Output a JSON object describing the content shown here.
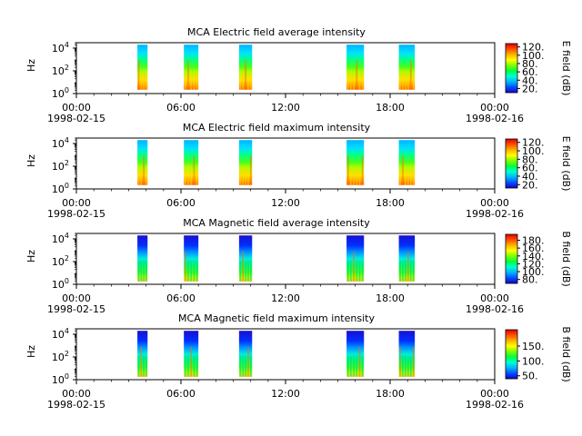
{
  "chart_data": [
    {
      "type": "heatmap",
      "title": "MCA  Electric field average intensity",
      "ylabel": "Hz",
      "y_scale": "log",
      "ylim": [
        1,
        30000
      ],
      "y_ticks": [
        {
          "exp": "0",
          "value": 1
        },
        {
          "exp": "2",
          "value": 100
        },
        {
          "exp": "4",
          "value": 10000
        }
      ],
      "x_ticks": [
        {
          "time": "00:00",
          "date": "1998-02-15"
        },
        {
          "time": "06:00",
          "date": ""
        },
        {
          "time": "12:00",
          "date": ""
        },
        {
          "time": "18:00",
          "date": ""
        },
        {
          "time": "00:00",
          "date": "1998-02-16"
        }
      ],
      "xlim": [
        "1998-02-15T00:00",
        "1998-02-16T00:00"
      ],
      "data_intervals": [
        [
          "03:30",
          "04:05"
        ],
        [
          "06:10",
          "07:00"
        ],
        [
          "09:20",
          "10:05"
        ],
        [
          "15:30",
          "16:30"
        ],
        [
          "18:30",
          "19:25"
        ]
      ],
      "colorbar": {
        "label": "E field (dB)",
        "range": [
          10,
          128
        ],
        "ticks": [
          20,
          40,
          60,
          80,
          100,
          120
        ],
        "tick_labels": [
          "20.",
          "40.",
          "60.",
          "80.",
          "100.",
          "120."
        ]
      },
      "colormap": "rainbow"
    },
    {
      "type": "heatmap",
      "title": "MCA  Electric field maximum intensity",
      "ylabel": "Hz",
      "y_scale": "log",
      "ylim": [
        1,
        30000
      ],
      "y_ticks": [
        {
          "exp": "0",
          "value": 1
        },
        {
          "exp": "2",
          "value": 100
        },
        {
          "exp": "4",
          "value": 10000
        }
      ],
      "x_ticks": [
        {
          "time": "00:00",
          "date": "1998-02-15"
        },
        {
          "time": "06:00",
          "date": ""
        },
        {
          "time": "12:00",
          "date": ""
        },
        {
          "time": "18:00",
          "date": ""
        },
        {
          "time": "00:00",
          "date": "1998-02-16"
        }
      ],
      "xlim": [
        "1998-02-15T00:00",
        "1998-02-16T00:00"
      ],
      "data_intervals": [
        [
          "03:30",
          "04:05"
        ],
        [
          "06:10",
          "07:00"
        ],
        [
          "09:20",
          "10:05"
        ],
        [
          "15:30",
          "16:30"
        ],
        [
          "18:30",
          "19:25"
        ]
      ],
      "colorbar": {
        "label": "E field (dB)",
        "range": [
          12,
          128
        ],
        "ticks": [
          20,
          40,
          60,
          80,
          100,
          120
        ],
        "tick_labels": [
          "20.",
          "40.",
          "60.",
          "80.",
          "100.",
          "120."
        ]
      },
      "colormap": "rainbow"
    },
    {
      "type": "heatmap",
      "title": "MCA  Magnetic field average intensity",
      "ylabel": "Hz",
      "y_scale": "log",
      "ylim": [
        1,
        30000
      ],
      "y_ticks": [
        {
          "exp": "0",
          "value": 1
        },
        {
          "exp": "2",
          "value": 100
        },
        {
          "exp": "4",
          "value": 10000
        }
      ],
      "x_ticks": [
        {
          "time": "00:00",
          "date": "1998-02-15"
        },
        {
          "time": "06:00",
          "date": ""
        },
        {
          "time": "12:00",
          "date": ""
        },
        {
          "time": "18:00",
          "date": ""
        },
        {
          "time": "00:00",
          "date": "1998-02-16"
        }
      ],
      "xlim": [
        "1998-02-15T00:00",
        "1998-02-16T00:00"
      ],
      "data_intervals": [
        [
          "03:30",
          "04:05"
        ],
        [
          "06:10",
          "07:00"
        ],
        [
          "09:20",
          "10:05"
        ],
        [
          "15:30",
          "16:30"
        ],
        [
          "18:30",
          "19:25"
        ]
      ],
      "colorbar": {
        "label": "B field (dB)",
        "range": [
          70,
          195
        ],
        "ticks": [
          80,
          100,
          120,
          140,
          160,
          180
        ],
        "tick_labels": [
          "80.",
          "100.",
          "120.",
          "140.",
          "160.",
          "180."
        ]
      },
      "colormap": "rainbow"
    },
    {
      "type": "heatmap",
      "title": "MCA  Magnetic field maximum intensity",
      "ylabel": "Hz",
      "y_scale": "log",
      "ylim": [
        1,
        30000
      ],
      "y_ticks": [
        {
          "exp": "0",
          "value": 1
        },
        {
          "exp": "2",
          "value": 100
        },
        {
          "exp": "4",
          "value": 10000
        }
      ],
      "x_ticks": [
        {
          "time": "00:00",
          "date": "1998-02-15"
        },
        {
          "time": "06:00",
          "date": ""
        },
        {
          "time": "12:00",
          "date": ""
        },
        {
          "time": "18:00",
          "date": ""
        },
        {
          "time": "00:00",
          "date": "1998-02-16"
        }
      ],
      "xlim": [
        "1998-02-15T00:00",
        "1998-02-16T00:00"
      ],
      "data_intervals": [
        [
          "03:30",
          "04:05"
        ],
        [
          "06:10",
          "07:00"
        ],
        [
          "09:20",
          "10:05"
        ],
        [
          "15:30",
          "16:30"
        ],
        [
          "18:30",
          "19:25"
        ]
      ],
      "colorbar": {
        "label": "B field (dB)",
        "range": [
          40,
          205
        ],
        "ticks": [
          50,
          100,
          150
        ],
        "tick_labels": [
          "50.",
          "100.",
          "150."
        ]
      },
      "colormap": "rainbow"
    }
  ]
}
